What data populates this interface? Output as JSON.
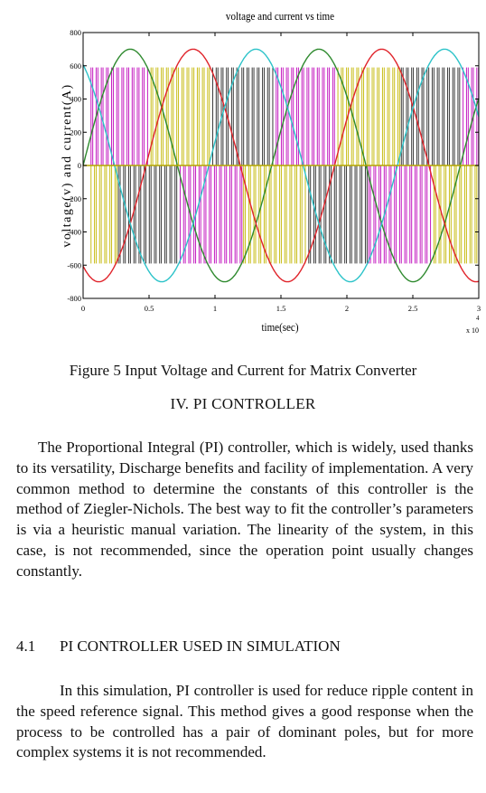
{
  "chart_data": {
    "type": "line",
    "title": "voltage and current vs time",
    "xlabel": "time(sec)",
    "ylabel": "voltage(v) and current(A)",
    "xlim": [
      0,
      30000
    ],
    "ylim": [
      -800,
      800
    ],
    "x_ticks": [
      "0",
      "0.5",
      "1",
      "1.5",
      "2",
      "2.5",
      "3"
    ],
    "x_multiplier": "x 10",
    "x_multiplier_exp": "4",
    "y_ticks": [
      "800",
      "600",
      "400",
      "200",
      "0",
      "-200",
      "-400",
      "-600",
      "-800"
    ],
    "voltage_amplitude": 700,
    "voltage_period": 14300,
    "current_amplitude": 590,
    "colors": {
      "voltage_a": "#2f8a2f",
      "voltage_b": "#e0242b",
      "voltage_c": "#2cc3c9",
      "current_a": "#c41cc0",
      "current_b": "#c8bd18",
      "current_c": "#3a3a3a",
      "zero_line": "#b3a600"
    }
  },
  "caption": "Figure 5 Input Voltage and Current for Matrix Converter",
  "section_heading": "IV. PI CONTROLLER",
  "paragraph1": "The Proportional Integral (PI) controller, which is widely, used thanks to its versatility, Discharge benefits and facility of implementation. A very common method to determine the constants of this controller is the method of Ziegler-Nichols. The best way to fit the controller’s parameters is via a heuristic manual variation. The linearity of the system, in this case, is not recommended, since the operation point usually changes constantly.",
  "subsection": {
    "number": "4.1",
    "title": "PI CONTROLLER USED IN SIMULATION"
  },
  "paragraph2": "In this simulation, PI controller is used for reduce ripple content in the speed reference signal. This method gives a good response when the process to be controlled has a pair of dominant poles, but for more complex systems it is not recommended."
}
